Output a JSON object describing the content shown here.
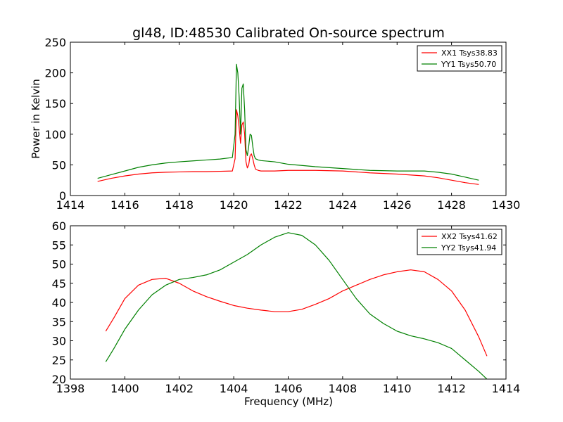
{
  "chart_data": [
    {
      "type": "line",
      "title": "gl48, ID:48530 Calibrated On-source spectrum",
      "xlabel": "",
      "ylabel": "Power in Kelvin",
      "xlim": [
        1414,
        1430
      ],
      "ylim": [
        0,
        250
      ],
      "xticks": [
        1414,
        1416,
        1418,
        1420,
        1422,
        1424,
        1426,
        1428,
        1430
      ],
      "yticks": [
        0,
        50,
        100,
        150,
        200,
        250
      ],
      "grid": false,
      "legend": "top-right",
      "series": [
        {
          "name": "XX1 Tsys38.83",
          "color": "#ff0000",
          "x": [
            1415.0,
            1415.5,
            1416.0,
            1416.5,
            1417.0,
            1417.5,
            1418.0,
            1418.5,
            1419.0,
            1419.5,
            1419.95,
            1420.05,
            1420.1,
            1420.15,
            1420.2,
            1420.25,
            1420.3,
            1420.35,
            1420.4,
            1420.45,
            1420.5,
            1420.55,
            1420.6,
            1420.65,
            1420.7,
            1420.75,
            1420.8,
            1420.9,
            1421.0,
            1421.5,
            1422.0,
            1423.0,
            1424.0,
            1425.0,
            1426.0,
            1427.0,
            1427.5,
            1428.0,
            1428.5,
            1429.0
          ],
          "y": [
            23,
            28,
            32,
            35,
            37,
            38,
            38.5,
            39,
            39,
            39.5,
            40,
            60,
            140,
            130,
            110,
            85,
            115,
            120,
            100,
            55,
            45,
            50,
            65,
            68,
            60,
            50,
            43,
            41,
            40,
            40,
            41,
            41,
            40,
            37,
            35,
            32,
            29,
            25,
            21,
            18
          ]
        },
        {
          "name": "YY1 Tsys50.70",
          "color": "#008000",
          "x": [
            1415.0,
            1415.5,
            1416.0,
            1416.5,
            1417.0,
            1417.5,
            1418.0,
            1418.5,
            1419.0,
            1419.5,
            1419.95,
            1420.05,
            1420.1,
            1420.15,
            1420.2,
            1420.25,
            1420.3,
            1420.35,
            1420.4,
            1420.45,
            1420.5,
            1420.55,
            1420.6,
            1420.65,
            1420.7,
            1420.75,
            1420.8,
            1420.9,
            1421.0,
            1421.5,
            1422.0,
            1423.0,
            1424.0,
            1425.0,
            1426.0,
            1427.0,
            1427.5,
            1428.0,
            1428.5,
            1429.0
          ],
          "y": [
            28,
            34,
            40,
            46,
            50,
            53,
            55,
            56.5,
            58,
            59.5,
            62,
            100,
            214,
            200,
            160,
            100,
            175,
            182,
            140,
            75,
            65,
            80,
            100,
            98,
            80,
            65,
            60,
            58,
            57,
            55,
            51,
            47,
            44,
            41,
            40,
            40,
            38,
            35,
            30,
            25
          ]
        }
      ]
    },
    {
      "type": "line",
      "title": "",
      "xlabel": "Frequency (MHz)",
      "ylabel": "",
      "xlim": [
        1398,
        1414
      ],
      "ylim": [
        20,
        60
      ],
      "xticks": [
        1398,
        1400,
        1402,
        1404,
        1406,
        1408,
        1410,
        1412,
        1414
      ],
      "yticks": [
        20,
        25,
        30,
        35,
        40,
        45,
        50,
        55,
        60
      ],
      "grid": false,
      "legend": "top-right",
      "series": [
        {
          "name": "XX2 Tsys41.62",
          "color": "#ff0000",
          "x": [
            1399.3,
            1399.6,
            1400.0,
            1400.5,
            1401.0,
            1401.5,
            1402.0,
            1402.5,
            1403.0,
            1403.5,
            1404.0,
            1404.5,
            1405.0,
            1405.5,
            1406.0,
            1406.5,
            1407.0,
            1407.5,
            1408.0,
            1408.5,
            1409.0,
            1409.5,
            1410.0,
            1410.5,
            1411.0,
            1411.5,
            1412.0,
            1412.5,
            1413.0,
            1413.3
          ],
          "y": [
            32.5,
            36,
            41,
            44.5,
            46,
            46.3,
            45,
            43,
            41.5,
            40.3,
            39.2,
            38.5,
            38,
            37.6,
            37.6,
            38.2,
            39.5,
            41,
            43,
            44.5,
            46,
            47.2,
            48,
            48.5,
            48,
            46,
            43,
            38,
            31,
            26
          ]
        },
        {
          "name": "YY2 Tsys41.94",
          "color": "#008000",
          "x": [
            1399.3,
            1399.6,
            1400.0,
            1400.5,
            1401.0,
            1401.5,
            1402.0,
            1402.5,
            1403.0,
            1403.5,
            1404.0,
            1404.5,
            1405.0,
            1405.5,
            1406.0,
            1406.5,
            1407.0,
            1407.5,
            1408.0,
            1408.5,
            1409.0,
            1409.5,
            1410.0,
            1410.5,
            1411.0,
            1411.5,
            1412.0,
            1412.5,
            1413.0,
            1413.3
          ],
          "y": [
            24.5,
            28,
            33,
            38,
            42,
            44.5,
            46,
            46.5,
            47.2,
            48.5,
            50.5,
            52.5,
            55,
            57,
            58.2,
            57.5,
            55,
            51,
            46,
            41,
            37,
            34.5,
            32.5,
            31.3,
            30.5,
            29.5,
            28,
            25,
            22,
            20
          ]
        }
      ]
    }
  ]
}
